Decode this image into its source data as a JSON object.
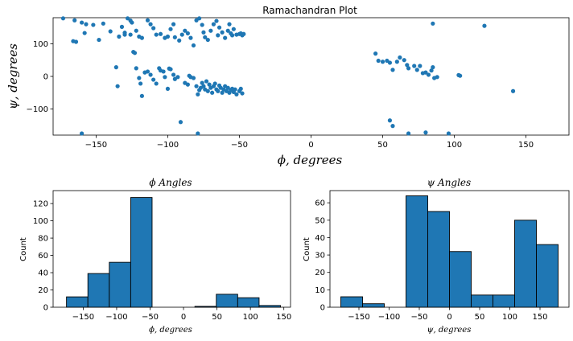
{
  "chart_data": [
    {
      "type": "scatter",
      "title": "Ramachandran Plot",
      "xlabel": "ϕ, degrees",
      "ylabel": "ψ, degrees",
      "xlim": [
        -180,
        180
      ],
      "ylim": [
        -180,
        180
      ],
      "xticks": [
        -150,
        -100,
        -50,
        0,
        50,
        100,
        150
      ],
      "yticks": [
        -100,
        0,
        100
      ],
      "color": "#1f77b4",
      "points": [
        [
          -173,
          178
        ],
        [
          -165,
          172
        ],
        [
          -160,
          165
        ],
        [
          -157,
          160
        ],
        [
          -152,
          158
        ],
        [
          -145,
          162
        ],
        [
          -166,
          108
        ],
        [
          -164,
          106
        ],
        [
          -158,
          133
        ],
        [
          -148,
          112
        ],
        [
          -140,
          138
        ],
        [
          -128,
          178
        ],
        [
          -126,
          171
        ],
        [
          -125,
          165
        ],
        [
          -132,
          152
        ],
        [
          -130,
          134
        ],
        [
          -126,
          128
        ],
        [
          -122,
          140
        ],
        [
          -120,
          122
        ],
        [
          -118,
          118
        ],
        [
          -114,
          172
        ],
        [
          -112,
          160
        ],
        [
          -110,
          148
        ],
        [
          -108,
          128
        ],
        [
          -105,
          130
        ],
        [
          -102,
          118
        ],
        [
          -100,
          122
        ],
        [
          -98,
          145
        ],
        [
          -96,
          160
        ],
        [
          -95,
          120
        ],
        [
          -92,
          110
        ],
        [
          -90,
          128
        ],
        [
          -88,
          140
        ],
        [
          -86,
          132
        ],
        [
          -84,
          118
        ],
        [
          -82,
          95
        ],
        [
          -80,
          172
        ],
        [
          -78,
          178
        ],
        [
          -76,
          158
        ],
        [
          -75,
          135
        ],
        [
          -74,
          120
        ],
        [
          -72,
          112
        ],
        [
          -70,
          140
        ],
        [
          -68,
          160
        ],
        [
          -66,
          170
        ],
        [
          -65,
          126
        ],
        [
          -64,
          150
        ],
        [
          -62,
          135
        ],
        [
          -60,
          118
        ],
        [
          -58,
          140
        ],
        [
          -57,
          160
        ],
        [
          -56,
          132
        ],
        [
          -55,
          126
        ],
        [
          -54,
          145
        ],
        [
          -52,
          128
        ],
        [
          -50,
          130
        ],
        [
          -49,
          132
        ],
        [
          -48,
          126
        ],
        [
          -47,
          130
        ],
        [
          -130,
          128
        ],
        [
          -134,
          122
        ],
        [
          -136,
          28
        ],
        [
          -135,
          -30
        ],
        [
          -124,
          75
        ],
        [
          -123,
          72
        ],
        [
          -122,
          25
        ],
        [
          -120,
          -5
        ],
        [
          -119,
          -22
        ],
        [
          -118,
          -60
        ],
        [
          -116,
          12
        ],
        [
          -114,
          15
        ],
        [
          -112,
          5
        ],
        [
          -110,
          -10
        ],
        [
          -108,
          -22
        ],
        [
          -106,
          25
        ],
        [
          -105,
          18
        ],
        [
          -103,
          15
        ],
        [
          -102,
          -2
        ],
        [
          -100,
          -38
        ],
        [
          -99,
          24
        ],
        [
          -98,
          22
        ],
        [
          -96,
          5
        ],
        [
          -95,
          -8
        ],
        [
          -93,
          -2
        ],
        [
          -91,
          -140
        ],
        [
          -88,
          -20
        ],
        [
          -86,
          -25
        ],
        [
          -85,
          2
        ],
        [
          -84,
          -2
        ],
        [
          -82,
          -5
        ],
        [
          -80,
          -30
        ],
        [
          -79,
          -55
        ],
        [
          -78,
          -42
        ],
        [
          -77,
          -35
        ],
        [
          -76,
          -20
        ],
        [
          -75,
          -30
        ],
        [
          -74,
          -40
        ],
        [
          -73,
          -15
        ],
        [
          -72,
          -45
        ],
        [
          -71,
          -25
        ],
        [
          -70,
          -35
        ],
        [
          -69,
          -50
        ],
        [
          -68,
          -30
        ],
        [
          -67,
          -22
        ],
        [
          -66,
          -40
        ],
        [
          -65,
          -45
        ],
        [
          -64,
          -28
        ],
        [
          -63,
          -35
        ],
        [
          -62,
          -50
        ],
        [
          -61,
          -40
        ],
        [
          -60,
          -30
        ],
        [
          -59,
          -45
        ],
        [
          -58,
          -35
        ],
        [
          -57,
          -50
        ],
        [
          -56,
          -42
        ],
        [
          -55,
          -38
        ],
        [
          -54,
          -48
        ],
        [
          -53,
          -40
        ],
        [
          -52,
          -55
        ],
        [
          -50,
          -45
        ],
        [
          -49,
          -38
        ],
        [
          -48,
          -52
        ],
        [
          -79,
          -175
        ],
        [
          -160,
          -175
        ],
        [
          45,
          70
        ],
        [
          47,
          48
        ],
        [
          50,
          45
        ],
        [
          53,
          48
        ],
        [
          55,
          42
        ],
        [
          57,
          20
        ],
        [
          60,
          45
        ],
        [
          62,
          58
        ],
        [
          65,
          50
        ],
        [
          67,
          35
        ],
        [
          68,
          25
        ],
        [
          72,
          32
        ],
        [
          74,
          20
        ],
        [
          76,
          32
        ],
        [
          78,
          10
        ],
        [
          80,
          12
        ],
        [
          82,
          5
        ],
        [
          84,
          18
        ],
        [
          85,
          28
        ],
        [
          86,
          -5
        ],
        [
          88,
          -2
        ],
        [
          85,
          162
        ],
        [
          104,
          2
        ],
        [
          103,
          4
        ],
        [
          121,
          155
        ],
        [
          141,
          -45
        ],
        [
          55,
          -135
        ],
        [
          57,
          -152
        ],
        [
          68,
          -175
        ],
        [
          80,
          -172
        ],
        [
          96,
          -175
        ]
      ]
    },
    {
      "type": "histogram",
      "title": "ϕ Angles",
      "xlabel": "ϕ, degrees",
      "ylabel": "Count",
      "xlim": [
        -195,
        160
      ],
      "ylim": [
        0,
        135
      ],
      "xticks": [
        -150,
        -100,
        -50,
        0,
        50,
        100,
        150
      ],
      "yticks": [
        0,
        20,
        40,
        60,
        80,
        100,
        120
      ],
      "color": "#1f77b4",
      "bins": [
        {
          "x0": -175,
          "x1": -143,
          "count": 12
        },
        {
          "x0": -143,
          "x1": -111,
          "count": 39
        },
        {
          "x0": -111,
          "x1": -79,
          "count": 52
        },
        {
          "x0": -79,
          "x1": -47,
          "count": 127
        },
        {
          "x0": -47,
          "x1": -15,
          "count": 0
        },
        {
          "x0": -15,
          "x1": 17,
          "count": 0
        },
        {
          "x0": 17,
          "x1": 49,
          "count": 1
        },
        {
          "x0": 49,
          "x1": 81,
          "count": 15
        },
        {
          "x0": 81,
          "x1": 113,
          "count": 11
        },
        {
          "x0": 113,
          "x1": 145,
          "count": 2
        }
      ]
    },
    {
      "type": "histogram",
      "title": "ψ Angles",
      "xlabel": "ψ, degrees",
      "ylabel": "Count",
      "xlim": [
        -198,
        198
      ],
      "ylim": [
        0,
        67
      ],
      "xticks": [
        -150,
        -100,
        -50,
        0,
        50,
        100,
        150
      ],
      "yticks": [
        0,
        10,
        20,
        30,
        40,
        50,
        60
      ],
      "color": "#1f77b4",
      "bins": [
        {
          "x0": -180,
          "x1": -144,
          "count": 6
        },
        {
          "x0": -144,
          "x1": -108,
          "count": 2
        },
        {
          "x0": -108,
          "x1": -72,
          "count": 0
        },
        {
          "x0": -72,
          "x1": -36,
          "count": 64
        },
        {
          "x0": -36,
          "x1": 0,
          "count": 55
        },
        {
          "x0": 0,
          "x1": 36,
          "count": 32
        },
        {
          "x0": 36,
          "x1": 72,
          "count": 7
        },
        {
          "x0": 72,
          "x1": 108,
          "count": 7
        },
        {
          "x0": 108,
          "x1": 144,
          "count": 50
        },
        {
          "x0": 144,
          "x1": 180,
          "count": 36
        }
      ]
    }
  ]
}
